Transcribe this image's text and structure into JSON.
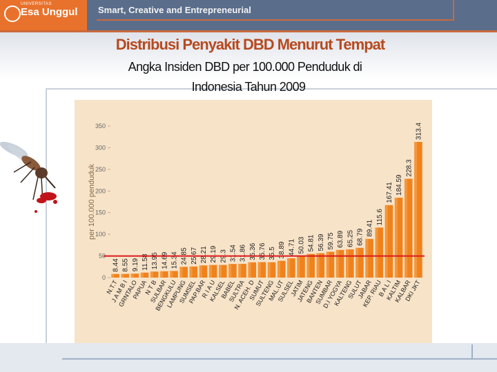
{
  "header": {
    "logo_text": "Esa Unggul",
    "logo_small": "UNIVERSITAS",
    "tagline": "Smart, Creative and Entrepreneurial"
  },
  "slide": {
    "title": "Distribusi Penyakit DBD Menurut Tempat",
    "subtitle_line1": "Angka Insiden  DBD per 100.000 Penduduk di",
    "subtitle_line2": "Indonesia Tahun 2009"
  },
  "colors": {
    "bar": "#f0821c",
    "bar_light": "#f7b266",
    "reference_line": "#d91c1c",
    "title": "#b64a1f",
    "header": "#5a6e8c",
    "logo": "#e8722c"
  },
  "chart_data": {
    "type": "bar",
    "title": "",
    "xlabel": "",
    "ylabel": "per 100.000 penduduk",
    "ylim": [
      0,
      350
    ],
    "yticks": [
      0,
      50,
      100,
      150,
      200,
      250,
      300,
      350
    ],
    "reference_line": 50,
    "categories": [
      "N.T.T",
      "J A M B I",
      "GRNTALO",
      "PAPUA",
      "N T B",
      "SULBAR",
      "BENGKULU",
      "LAMPUNG",
      "SUMSEL",
      "PAP.BAR",
      "R I A U",
      "KALSEL",
      "BABEL",
      "SULTRA",
      "N. ACEH. D",
      "SUMUT",
      "SULTENG",
      "MAL.UT",
      "SULSEL",
      "JATIM",
      "JATENG",
      "BANTEN",
      "SUMBAR",
      "D.I YOGYA",
      "KALTENG",
      "SULUT",
      "JABAR",
      "KEP. RIAU",
      "B A L I",
      "KALTIM",
      "KALBAR",
      "DKI JKT"
    ],
    "value_labels": [
      "8.44",
      "8.55",
      "9.19",
      "11.58",
      "13.95",
      "14.69",
      "15.34",
      "24.85",
      "25.67",
      "28.21",
      "29.19",
      "29.3",
      "31.54",
      "31.86",
      "35.36",
      "35.76",
      "35.5",
      "38.89",
      "44.71",
      "50.03",
      "54.81",
      "56.39",
      "59.75",
      "63.89",
      "65.25",
      "68.79",
      "89.41",
      "115.6",
      "167.41",
      "184.59",
      "228.3",
      "313.4"
    ],
    "values": [
      8.44,
      8.55,
      9.19,
      11.58,
      13.95,
      14.69,
      15.34,
      24.85,
      25.67,
      28.21,
      29.19,
      29.3,
      31.54,
      31.86,
      35.36,
      35.76,
      35.5,
      38.89,
      44.71,
      50.03,
      54.81,
      56.39,
      59.75,
      63.89,
      65.25,
      68.79,
      89.41,
      115.6,
      167.41,
      184.59,
      228.3,
      313.4
    ]
  }
}
